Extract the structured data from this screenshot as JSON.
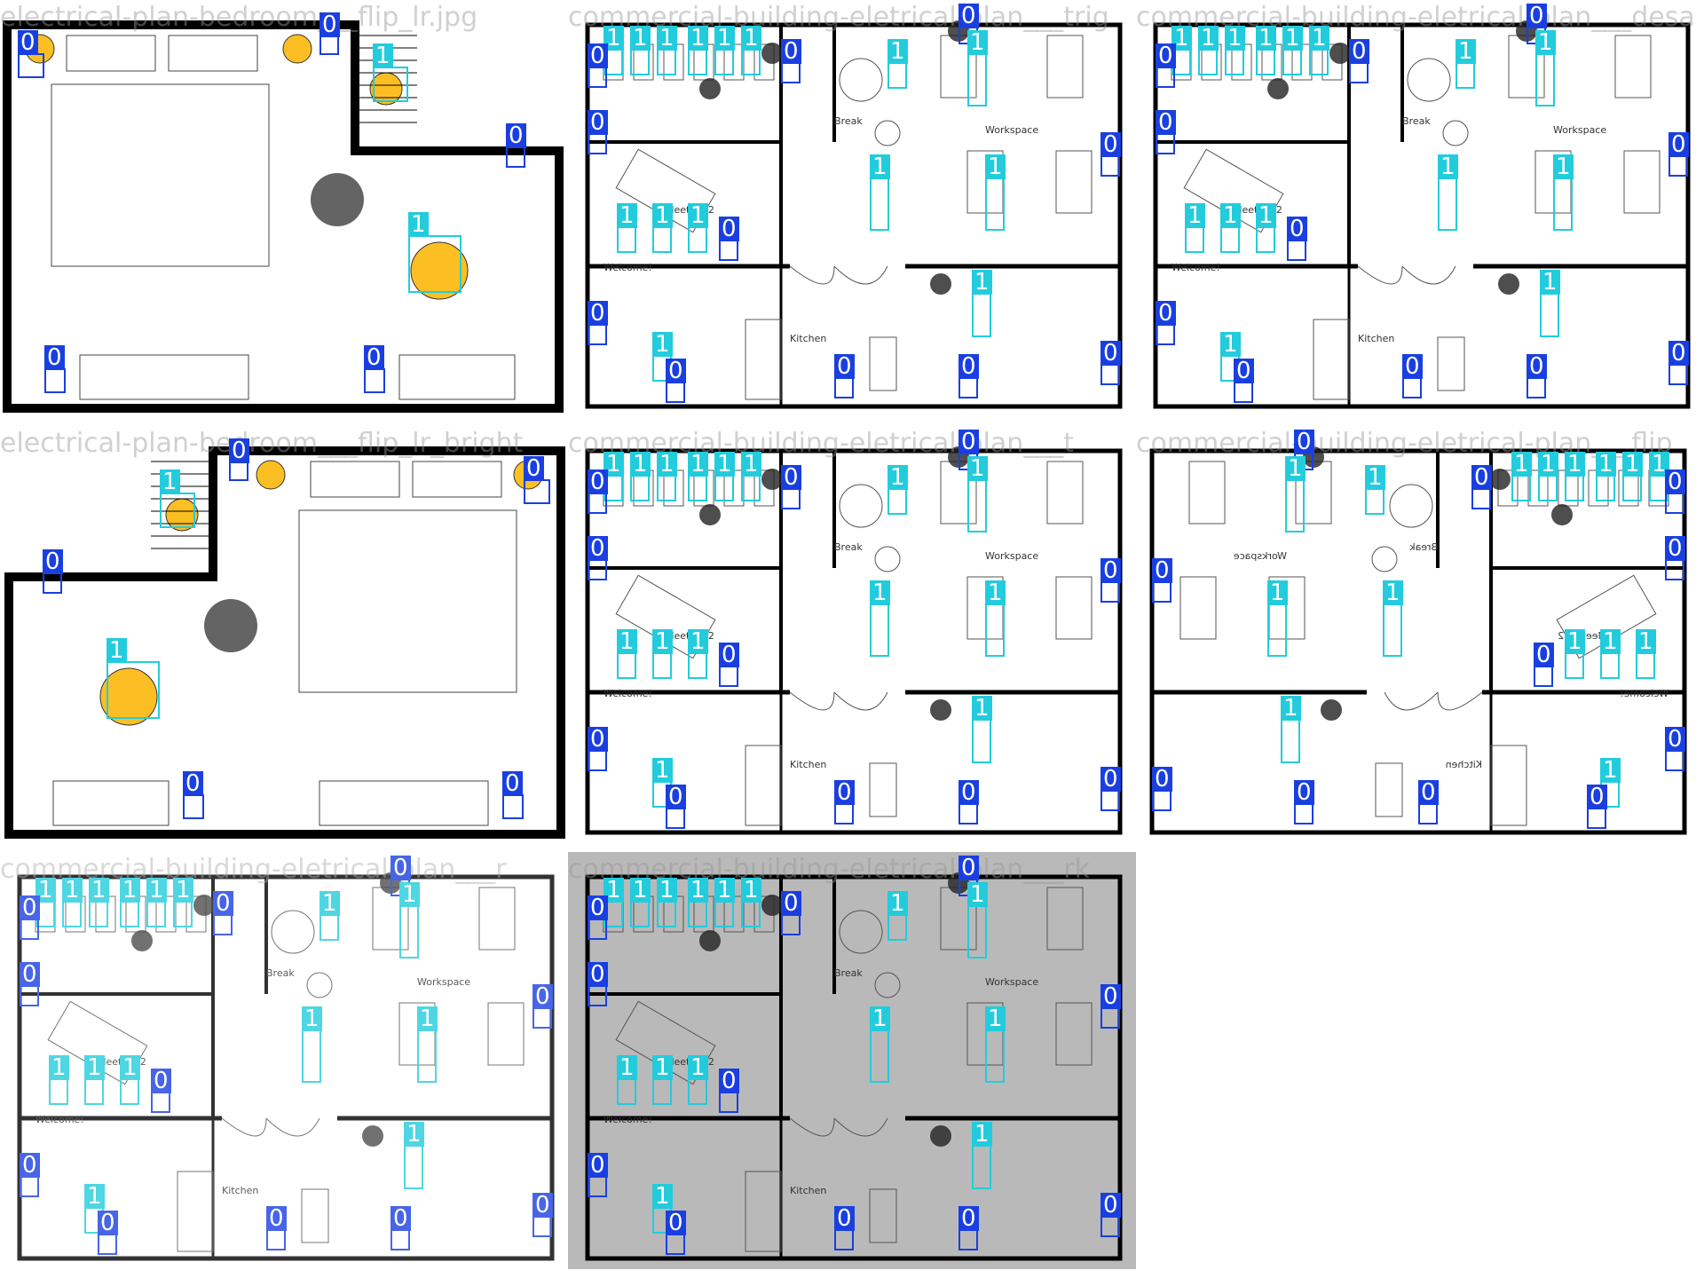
{
  "tiles": [
    {
      "title": "electrical-plan-bedroom___flip_lr.jpg",
      "kind": "bedroom",
      "variant": "normal"
    },
    {
      "title": "commercial-building-eletrical-plan___trig",
      "kind": "office",
      "variant": "normal"
    },
    {
      "title": "commercial-building-eletrical-plan___desa",
      "kind": "office",
      "variant": "desat"
    },
    {
      "title": "electrical-plan-bedroom___flip_lr_bright",
      "kind": "bedroom",
      "variant": "flipped"
    },
    {
      "title": "commercial-building-eletrical-plan___t",
      "kind": "office",
      "variant": "normal"
    },
    {
      "title": "commercial-building-eletrical-plan___flip",
      "kind": "office",
      "variant": "flipped"
    },
    {
      "title": "commercial-building-eletrical-plan___r",
      "kind": "office",
      "variant": "faded"
    },
    {
      "title": "commercial-building-eletrical-plan___rk",
      "kind": "office",
      "variant": "dark"
    }
  ],
  "room_labels": {
    "break": "Break",
    "workspace": "Workspace",
    "meeting": "Meeting 2",
    "welcome": "Welcome!",
    "kitchen": "Kitchen"
  },
  "class_labels": {
    "on": "1",
    "off": "0"
  },
  "colors": {
    "class1": "#22ccdd",
    "class0": "#1a3fe0",
    "fixture": "#fbbf24",
    "wall": "#000000"
  }
}
